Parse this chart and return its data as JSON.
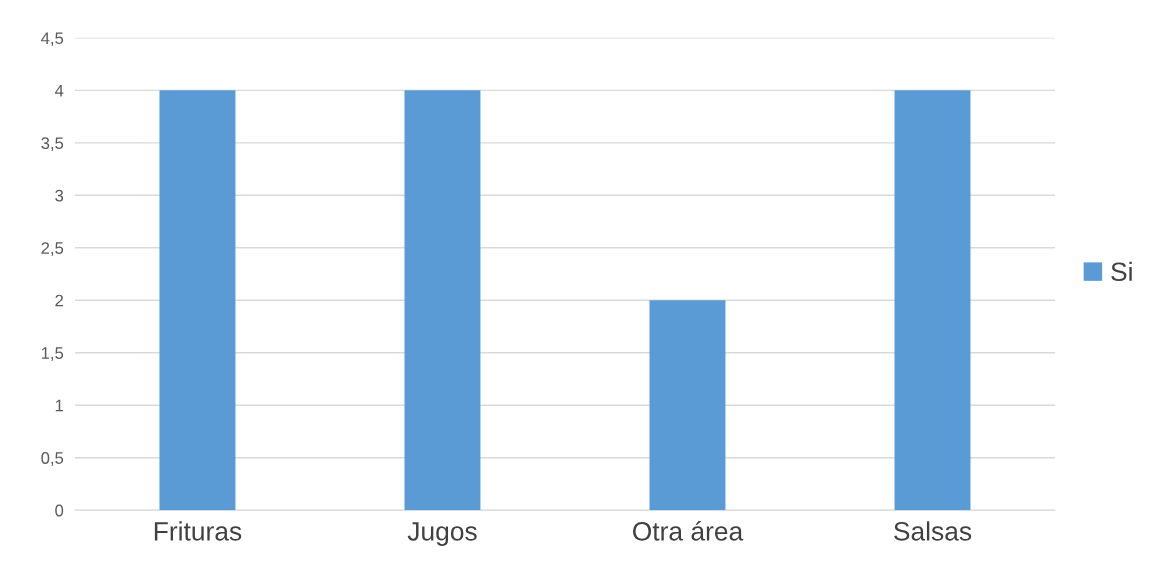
{
  "chart_data": {
    "type": "bar",
    "categories": [
      "Frituras",
      "Jugos",
      "Otra área",
      "Salsas"
    ],
    "series": [
      {
        "name": "Si",
        "color": "#5b9bd5",
        "values": [
          4,
          4,
          2,
          4
        ]
      }
    ],
    "ylim": [
      0,
      4.5
    ],
    "yticks": [
      0,
      {
        "value": 0.5,
        "label": "0,5"
      },
      1,
      {
        "value": 1.5,
        "label": "1,5"
      },
      2,
      {
        "value": 2.5,
        "label": "2,5"
      },
      3,
      {
        "value": 3.5,
        "label": "3,5"
      },
      4,
      {
        "value": 4.5,
        "label": "4,5"
      }
    ],
    "grid": "y",
    "legend": "right"
  }
}
